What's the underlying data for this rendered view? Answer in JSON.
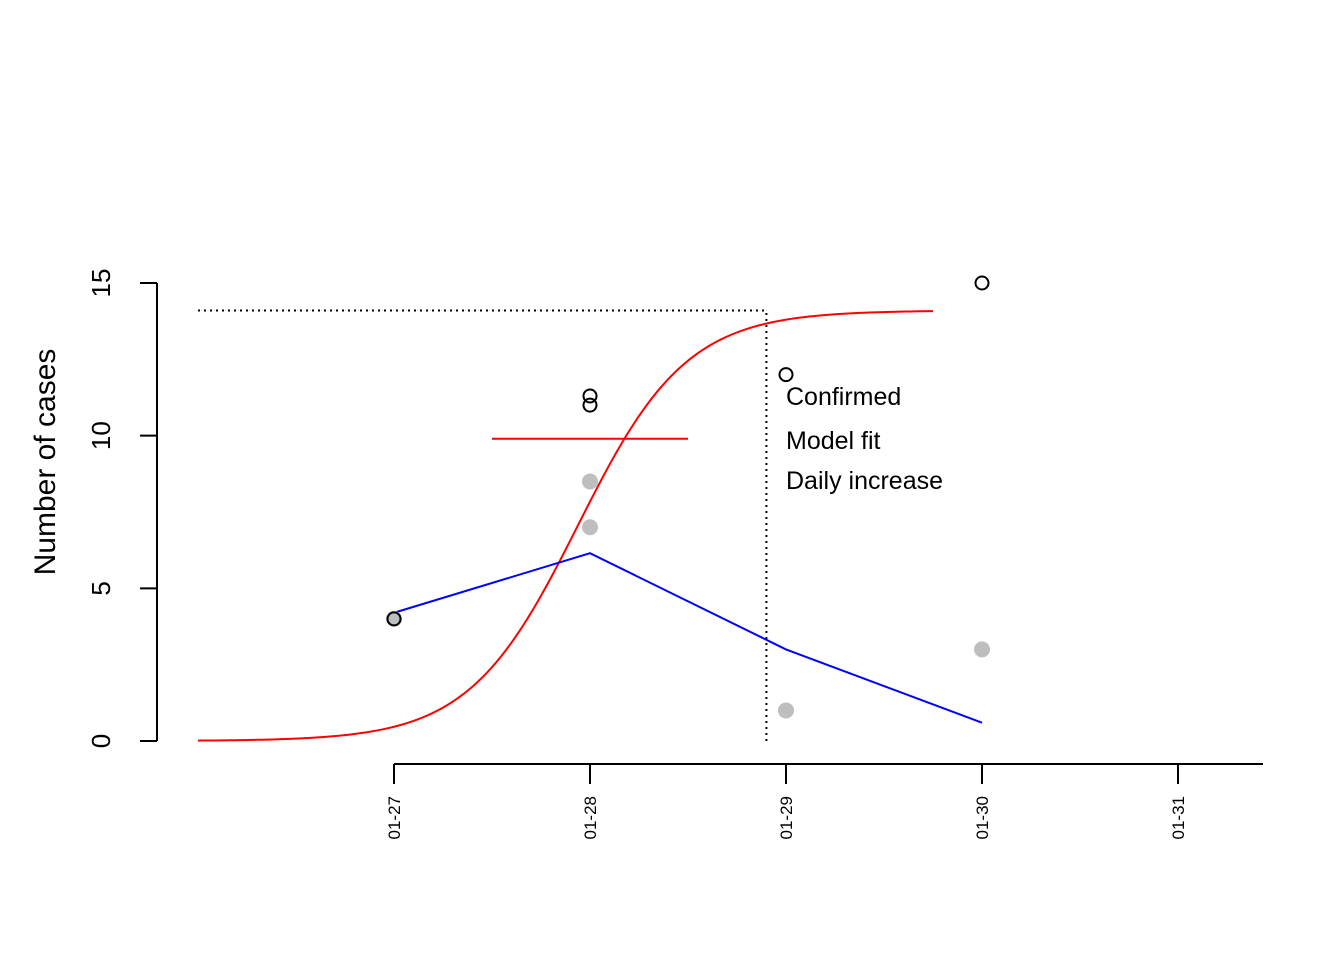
{
  "chart_data": {
    "type": "line",
    "title": "",
    "xlabel": "",
    "ylabel": "Number of cases",
    "ylim": [
      0,
      15
    ],
    "yticks": [
      0,
      5,
      10,
      15
    ],
    "xticks": [
      "01-27",
      "01-28",
      "01-29",
      "01-30",
      "01-31"
    ],
    "grid": false,
    "legend": {
      "placement": "center-right",
      "entries": [
        "Confirmed",
        "Model fit",
        "Daily increase"
      ]
    },
    "series": [
      {
        "name": "Confirmed",
        "kind": "open-circle",
        "color": "#000000",
        "points": [
          {
            "x": "01-27",
            "y": 4
          },
          {
            "x": "01-28",
            "y": 11
          },
          {
            "x": "01-28",
            "y": 11.3
          },
          {
            "x": "01-29",
            "y": 12
          },
          {
            "x": "01-30",
            "y": 15
          }
        ]
      },
      {
        "name": "Daily increase",
        "kind": "filled-circle",
        "color": "#bebebe",
        "points": [
          {
            "x": "01-27",
            "y": 4
          },
          {
            "x": "01-28",
            "y": 7
          },
          {
            "x": "01-28",
            "y": 8.5
          },
          {
            "x": "01-29",
            "y": 1
          },
          {
            "x": "01-30",
            "y": 3
          }
        ]
      },
      {
        "name": "Model fit",
        "kind": "logistic-curve",
        "color": "#ff0000",
        "params": {
          "K": 14.1,
          "r": 3.6,
          "t0": "01-27 22:30",
          "from": "01-26 00:00",
          "to": "01-29 18:00"
        }
      },
      {
        "name": "",
        "kind": "line",
        "color": "#0000ff",
        "points": [
          {
            "x": "01-27",
            "y": 4.2
          },
          {
            "x": "01-28",
            "y": 6.15
          },
          {
            "x": "01-29",
            "y": 3.0
          },
          {
            "x": "01-30",
            "y": 0.6
          }
        ]
      }
    ],
    "annotations": [
      {
        "kind": "hline-dotted",
        "y": 14.1,
        "from": "01-26 00:00",
        "to": "01-28 21:36",
        "color": "#000000"
      },
      {
        "kind": "vline-dotted",
        "x": "01-28 21:36",
        "from": 0,
        "to": 14.1,
        "color": "#000000"
      },
      {
        "kind": "hsegment",
        "y": 9.9,
        "from": "01-27 12:00",
        "to": "01-28 12:00",
        "color": "#ff0000"
      }
    ]
  }
}
